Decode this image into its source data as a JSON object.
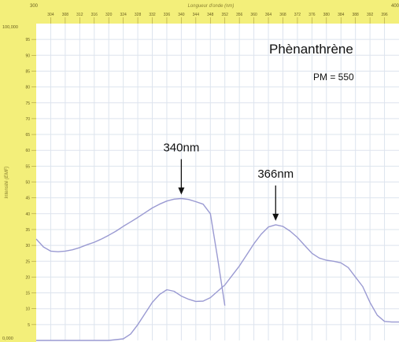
{
  "chart_data": {
    "type": "line",
    "xlabel": "Longueur d'onde (nm)",
    "ylabel": "Intensité (EMF)",
    "xlim": [
      300,
      400
    ],
    "ylim": [
      0,
      100
    ],
    "x_ticks": [
      304,
      308,
      312,
      316,
      320,
      324,
      328,
      332,
      336,
      340,
      344,
      348,
      352,
      356,
      360,
      364,
      368,
      372,
      376,
      380,
      384,
      388,
      392,
      396
    ],
    "x_min_label": "300",
    "x_max_label": "400",
    "y_ticks": [
      5,
      10,
      15,
      20,
      25,
      30,
      35,
      40,
      45,
      50,
      55,
      60,
      65,
      70,
      75,
      80,
      85,
      90,
      95
    ],
    "y_max_label": "100,000",
    "y_min_label": "0,000",
    "grid": true,
    "line_color": "#9a9ad2",
    "frame_color": "#f3ef7a",
    "series": [
      {
        "values": [
          [
            300,
            32
          ],
          [
            302,
            29.5
          ],
          [
            304,
            28.2
          ],
          [
            306,
            28
          ],
          [
            308,
            28.2
          ],
          [
            310,
            28.6
          ],
          [
            312,
            29.3
          ],
          [
            314,
            30.2
          ],
          [
            316,
            31
          ],
          [
            318,
            32
          ],
          [
            320,
            33.2
          ],
          [
            322,
            34.5
          ],
          [
            324,
            36
          ],
          [
            326,
            37.4
          ],
          [
            328,
            38.8
          ],
          [
            330,
            40.3
          ],
          [
            332,
            41.8
          ],
          [
            334,
            43
          ],
          [
            336,
            44
          ],
          [
            338,
            44.6
          ],
          [
            340,
            44.8
          ],
          [
            342,
            44.5
          ],
          [
            344,
            43.8
          ],
          [
            346,
            43
          ],
          [
            348,
            40
          ],
          [
            350,
            26
          ],
          [
            352,
            11
          ]
        ]
      },
      {
        "values": [
          [
            300,
            0
          ],
          [
            310,
            0
          ],
          [
            320,
            0
          ],
          [
            324,
            0.5
          ],
          [
            326,
            2
          ],
          [
            328,
            5
          ],
          [
            330,
            8.5
          ],
          [
            332,
            12
          ],
          [
            334,
            14.5
          ],
          [
            336,
            16
          ],
          [
            338,
            15.5
          ],
          [
            340,
            14
          ],
          [
            342,
            13
          ],
          [
            344,
            12.3
          ],
          [
            346,
            12.4
          ],
          [
            348,
            13.5
          ],
          [
            350,
            15.5
          ],
          [
            352,
            17.5
          ],
          [
            354,
            20.5
          ],
          [
            356,
            23.5
          ],
          [
            358,
            27
          ],
          [
            360,
            30.5
          ],
          [
            362,
            33.5
          ],
          [
            364,
            35.8
          ],
          [
            366,
            36.5
          ],
          [
            368,
            36
          ],
          [
            370,
            34.5
          ],
          [
            372,
            32.5
          ],
          [
            374,
            30
          ],
          [
            376,
            27.5
          ],
          [
            378,
            26
          ],
          [
            380,
            25.3
          ],
          [
            382,
            25
          ],
          [
            384,
            24.5
          ],
          [
            386,
            23
          ],
          [
            388,
            20
          ],
          [
            390,
            17
          ],
          [
            392,
            12
          ],
          [
            394,
            8
          ],
          [
            396,
            6
          ],
          [
            398,
            5.8
          ],
          [
            400,
            5.8
          ]
        ]
      }
    ],
    "annotations": [
      {
        "text": "340nm",
        "x": 340,
        "y": 44.8
      },
      {
        "text": "366nm",
        "x": 366,
        "y": 36.5
      }
    ]
  },
  "labels": {
    "compound": "Phènanthrène",
    "mass": "PM = 550"
  }
}
